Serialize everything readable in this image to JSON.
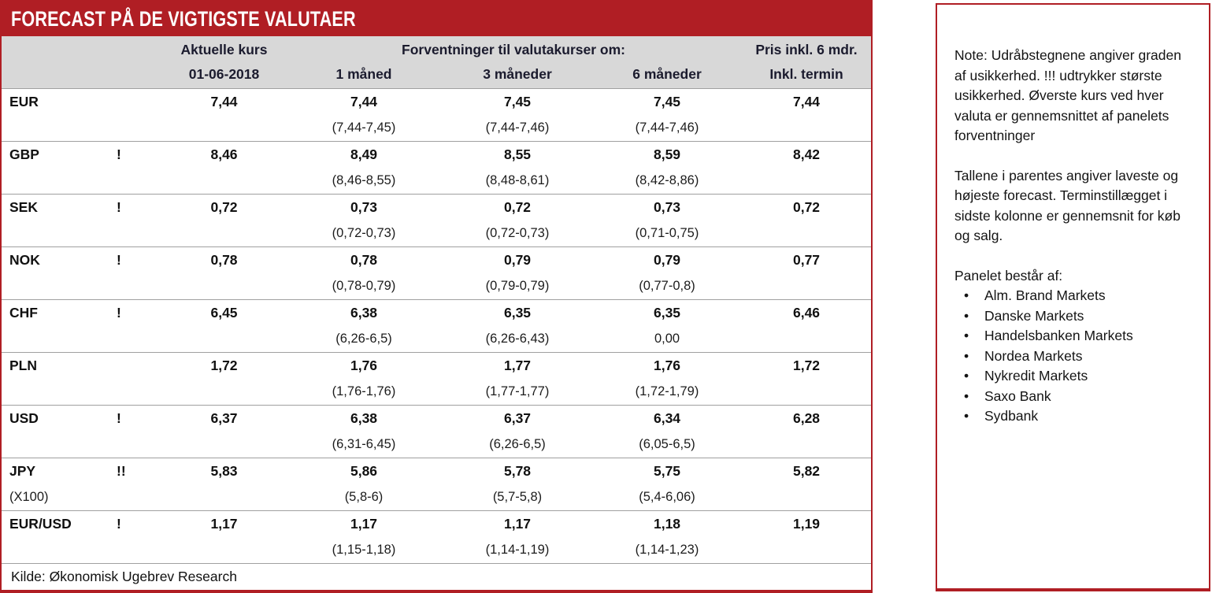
{
  "colors": {
    "accent": "#b01e24",
    "header_bg": "#d8d8d8",
    "header_text": "#1b1b2e"
  },
  "title": "FORECAST PÅ DE VIGTIGSTE VALUTAER",
  "table": {
    "header": {
      "aktuelle_kurs": "Aktuelle kurs",
      "date": "01-06-2018",
      "forventninger": "Forventninger til valutakurser om:",
      "m1": "1 måned",
      "m3": "3 måneder",
      "m6": "6 måneder",
      "pris": "Pris inkl. 6 mdr.",
      "termin": "Inkl. termin"
    },
    "rows": [
      {
        "currency": "EUR",
        "sub": "",
        "warn": "",
        "aktuel": "7,44",
        "m1": "7,44",
        "m1r": "(7,44-7,45)",
        "m3": "7,45",
        "m3r": "(7,44-7,46)",
        "m6": "7,45",
        "m6r": "(7,44-7,46)",
        "termin": "7,44"
      },
      {
        "currency": "GBP",
        "sub": "",
        "warn": "!",
        "aktuel": "8,46",
        "m1": "8,49",
        "m1r": "(8,46-8,55)",
        "m3": "8,55",
        "m3r": "(8,48-8,61)",
        "m6": "8,59",
        "m6r": "(8,42-8,86)",
        "termin": "8,42"
      },
      {
        "currency": "SEK",
        "sub": "",
        "warn": "!",
        "aktuel": "0,72",
        "m1": "0,73",
        "m1r": "(0,72-0,73)",
        "m3": "0,72",
        "m3r": "(0,72-0,73)",
        "m6": "0,73",
        "m6r": "(0,71-0,75)",
        "termin": "0,72"
      },
      {
        "currency": "NOK",
        "sub": "",
        "warn": "!",
        "aktuel": "0,78",
        "m1": "0,78",
        "m1r": "(0,78-0,79)",
        "m3": "0,79",
        "m3r": "(0,79-0,79)",
        "m6": "0,79",
        "m6r": "(0,77-0,8)",
        "termin": "0,77"
      },
      {
        "currency": "CHF",
        "sub": "",
        "warn": "!",
        "aktuel": "6,45",
        "m1": "6,38",
        "m1r": "(6,26-6,5)",
        "m3": "6,35",
        "m3r": "(6,26-6,43)",
        "m6": "6,35",
        "m6r": "0,00",
        "termin": "6,46"
      },
      {
        "currency": "PLN",
        "sub": "",
        "warn": "",
        "aktuel": "1,72",
        "m1": "1,76",
        "m1r": "(1,76-1,76)",
        "m3": "1,77",
        "m3r": "(1,77-1,77)",
        "m6": "1,76",
        "m6r": "(1,72-1,79)",
        "termin": "1,72"
      },
      {
        "currency": "USD",
        "sub": "",
        "warn": "!",
        "aktuel": "6,37",
        "m1": "6,38",
        "m1r": "(6,31-6,45)",
        "m3": "6,37",
        "m3r": "(6,26-6,5)",
        "m6": "6,34",
        "m6r": "(6,05-6,5)",
        "termin": "6,28"
      },
      {
        "currency": "JPY",
        "sub": "(X100)",
        "warn": "!!",
        "aktuel": "5,83",
        "m1": "5,86",
        "m1r": "(5,8-6)",
        "m3": "5,78",
        "m3r": "(5,7-5,8)",
        "m6": "5,75",
        "m6r": "(5,4-6,06)",
        "termin": "5,82"
      },
      {
        "currency": "EUR/USD",
        "sub": "",
        "warn": "!",
        "aktuel": "1,17",
        "m1": "1,17",
        "m1r": "(1,15-1,18)",
        "m3": "1,17",
        "m3r": "(1,14-1,19)",
        "m6": "1,18",
        "m6r": "(1,14-1,23)",
        "termin": "1,19"
      }
    ],
    "kilde": "Kilde: Økonomisk Ugebrev Research"
  },
  "note": {
    "paragraphs": [
      "Note: Udråbstegnene angiver graden af usikkerhed. !!! udtrykker største usikkerhed. Øverste kurs ved hver valuta er gennemsnittet af panelets forventninger",
      "Tallene i parentes angiver laveste og højeste forecast. Terminstillægget i sidste kolonne er gennemsnit for køb og salg.",
      "Panelet består af:"
    ],
    "bullet": "•",
    "panel": [
      "Alm. Brand Markets",
      "Danske Markets",
      "Handelsbanken Markets",
      "Nordea Markets",
      "Nykredit Markets",
      "Saxo Bank",
      "Sydbank"
    ]
  }
}
